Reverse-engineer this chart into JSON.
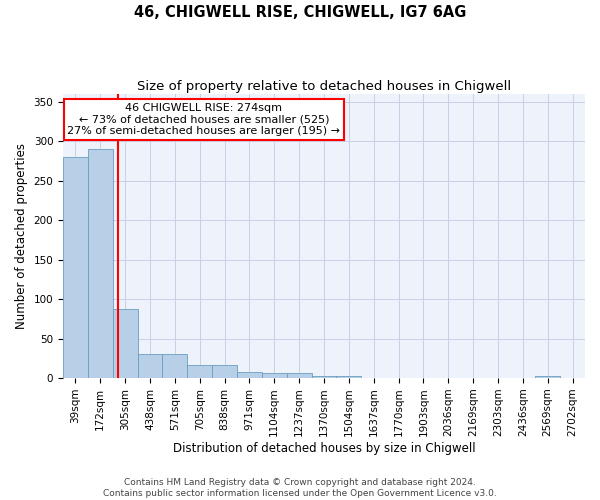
{
  "title": "46, CHIGWELL RISE, CHIGWELL, IG7 6AG",
  "subtitle": "Size of property relative to detached houses in Chigwell",
  "xlabel": "Distribution of detached houses by size in Chigwell",
  "ylabel": "Number of detached properties",
  "bin_labels": [
    "39sqm",
    "172sqm",
    "305sqm",
    "438sqm",
    "571sqm",
    "705sqm",
    "838sqm",
    "971sqm",
    "1104sqm",
    "1237sqm",
    "1370sqm",
    "1504sqm",
    "1637sqm",
    "1770sqm",
    "1903sqm",
    "2036sqm",
    "2169sqm",
    "2303sqm",
    "2436sqm",
    "2569sqm",
    "2702sqm"
  ],
  "bar_heights": [
    280,
    290,
    88,
    30,
    30,
    16,
    16,
    8,
    6,
    6,
    3,
    3,
    0,
    0,
    0,
    0,
    0,
    0,
    0,
    3,
    0
  ],
  "bar_color": "#b8cfe8",
  "bar_edge_color": "#6a9ec0",
  "red_line_x": 1.72,
  "annotation_line1": "46 CHIGWELL RISE: 274sqm",
  "annotation_line2": "← 73% of detached houses are smaller (525)",
  "annotation_line3": "27% of semi-detached houses are larger (195) →",
  "ylim": [
    0,
    360
  ],
  "yticks": [
    0,
    50,
    100,
    150,
    200,
    250,
    300,
    350
  ],
  "footer_line1": "Contains HM Land Registry data © Crown copyright and database right 2024.",
  "footer_line2": "Contains public sector information licensed under the Open Government Licence v3.0.",
  "bg_color": "#eef2fb",
  "grid_color": "#c8d0e8",
  "title_fontsize": 10.5,
  "subtitle_fontsize": 9.5,
  "axis_label_fontsize": 8.5,
  "tick_fontsize": 7.5,
  "annotation_fontsize": 8,
  "footer_fontsize": 6.5
}
